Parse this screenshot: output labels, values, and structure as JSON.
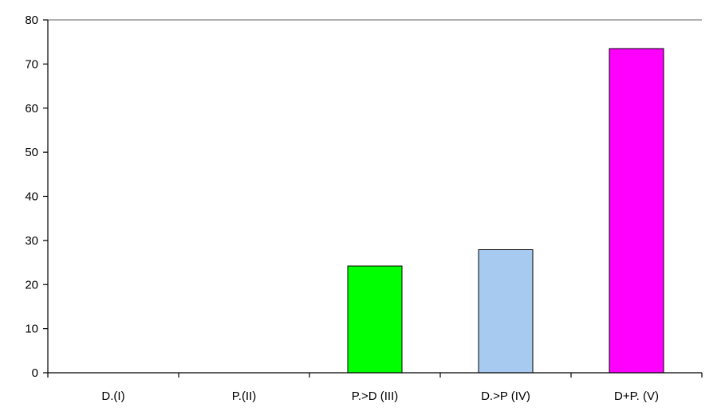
{
  "chart_data": {
    "type": "bar",
    "title": "",
    "xlabel": "",
    "ylabel": "",
    "categories": [
      "D.(I)",
      "P.(II)",
      "P.>D (III)",
      "D.>P (IV)",
      "D+P. (V)"
    ],
    "values": [
      0,
      0,
      24.2,
      27.9,
      73.5
    ],
    "bar_colors": [
      "#00ff00",
      "#00ff00",
      "#00ff00",
      "#a6caf0",
      "#ff00ff"
    ],
    "ylim": [
      0,
      80
    ],
    "yticks": [
      0,
      10,
      20,
      30,
      40,
      50,
      60,
      70,
      80
    ],
    "grid": false,
    "legend": "none",
    "top_line_at": 80
  }
}
